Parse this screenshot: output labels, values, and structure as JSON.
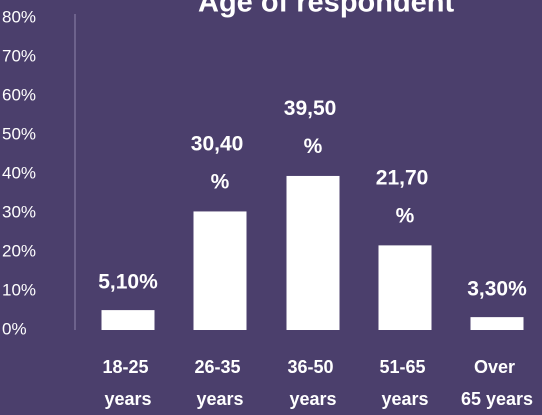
{
  "chart_data": {
    "type": "bar",
    "title": "Age of respondent",
    "categories": [
      "18-25 years",
      "26-35 years",
      "36-50 years",
      "51-65 years",
      "Over 65 years"
    ],
    "values": [
      5.1,
      30.4,
      39.5,
      21.7,
      3.3
    ],
    "value_labels": [
      "5,10%",
      "30,40 %",
      "39,50 %",
      "21,70 %",
      "3,30%"
    ],
    "color": "#ffffff",
    "ylim": [
      0,
      80
    ],
    "yticks": [
      {
        "value": 0,
        "label": "0%"
      },
      {
        "value": 10,
        "label": "10%"
      },
      {
        "value": 20,
        "label": "20%"
      },
      {
        "value": 30,
        "label": "30%"
      },
      {
        "value": 40,
        "label": "40%"
      },
      {
        "value": 50,
        "label": "50%"
      },
      {
        "value": 60,
        "label": "60%"
      },
      {
        "value": 70,
        "label": "70%"
      },
      {
        "value": 80,
        "label": "80%"
      }
    ],
    "grid": false
  }
}
